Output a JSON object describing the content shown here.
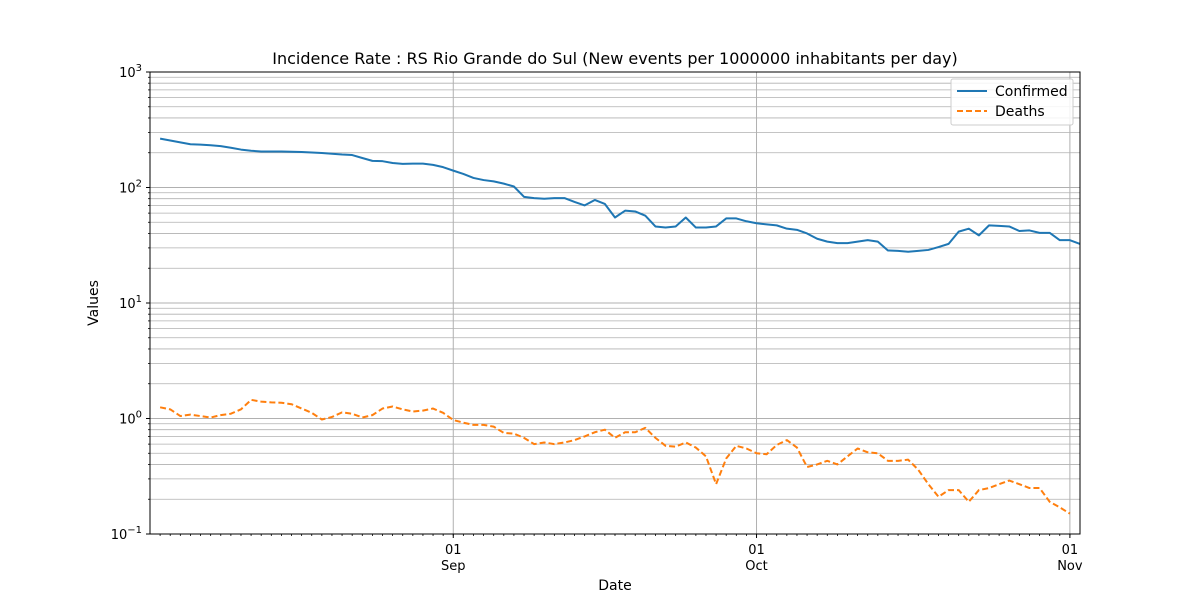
{
  "chart_data": {
    "type": "line",
    "title": "Incidence Rate : RS Rio Grande do Sul (New events per 1000000 inhabitants per day)",
    "xlabel": "Date",
    "ylabel": "Values",
    "yscale": "log",
    "ylim": [
      0.1,
      1000
    ],
    "xlim": [
      "2020-08-02",
      "2020-11-02"
    ],
    "y_ticks": [
      {
        "value": 0.1,
        "base": "10",
        "exp": "−1"
      },
      {
        "value": 1,
        "base": "10",
        "exp": "0"
      },
      {
        "value": 10,
        "base": "10",
        "exp": "1"
      },
      {
        "value": 100,
        "base": "10",
        "exp": "2"
      },
      {
        "value": 1000,
        "base": "10",
        "exp": "3"
      }
    ],
    "x_ticks": [
      {
        "date": "2020-09-01",
        "day": "01",
        "month": "Sep"
      },
      {
        "date": "2020-10-01",
        "day": "01",
        "month": "Oct"
      },
      {
        "date": "2020-11-01",
        "day": "01",
        "month": "Nov"
      }
    ],
    "grid": true,
    "legend_position": "top-right",
    "x_start": "2020-08-03",
    "series": [
      {
        "name": "Confirmed",
        "color": "#1f77b4",
        "style": "solid",
        "values": [
          265,
          255,
          246,
          237,
          235,
          232,
          228,
          221,
          213,
          208,
          205,
          205,
          205,
          204,
          203,
          201,
          199,
          196,
          193,
          191,
          180,
          170,
          169,
          163,
          160,
          161,
          161,
          157,
          150,
          140,
          131,
          121,
          116,
          113,
          108,
          102,
          83,
          81,
          80,
          81,
          81,
          75,
          70,
          78,
          72,
          55,
          63,
          62,
          57,
          46,
          45,
          46,
          55,
          45,
          45,
          46,
          54,
          54,
          51,
          49,
          48,
          47,
          44,
          43,
          40,
          36,
          34,
          33,
          33,
          34,
          35,
          34,
          28.5,
          28.3,
          27.8,
          28.3,
          28.8,
          30.5,
          32.5,
          41.5,
          44,
          38.5,
          47,
          46.5,
          46,
          42,
          42.5,
          40.5,
          40.5,
          35,
          35,
          32.5
        ]
      },
      {
        "name": "Deaths",
        "color": "#ff7f0e",
        "style": "dashed",
        "values": [
          1.25,
          1.2,
          1.05,
          1.08,
          1.05,
          1.02,
          1.07,
          1.1,
          1.2,
          1.45,
          1.4,
          1.38,
          1.37,
          1.33,
          1.22,
          1.12,
          0.98,
          1.03,
          1.13,
          1.1,
          1.02,
          1.07,
          1.22,
          1.27,
          1.2,
          1.15,
          1.17,
          1.22,
          1.12,
          0.97,
          0.92,
          0.88,
          0.88,
          0.85,
          0.75,
          0.74,
          0.68,
          0.6,
          0.62,
          0.6,
          0.62,
          0.65,
          0.7,
          0.76,
          0.8,
          0.68,
          0.76,
          0.76,
          0.83,
          0.68,
          0.58,
          0.57,
          0.62,
          0.56,
          0.47,
          0.27,
          0.45,
          0.58,
          0.55,
          0.5,
          0.49,
          0.59,
          0.65,
          0.56,
          0.38,
          0.4,
          0.43,
          0.4,
          0.47,
          0.55,
          0.51,
          0.5,
          0.43,
          0.43,
          0.44,
          0.36,
          0.27,
          0.21,
          0.24,
          0.24,
          0.19,
          0.24,
          0.25,
          0.27,
          0.29,
          0.27,
          0.25,
          0.25,
          0.19,
          0.17,
          0.15
        ]
      }
    ]
  }
}
